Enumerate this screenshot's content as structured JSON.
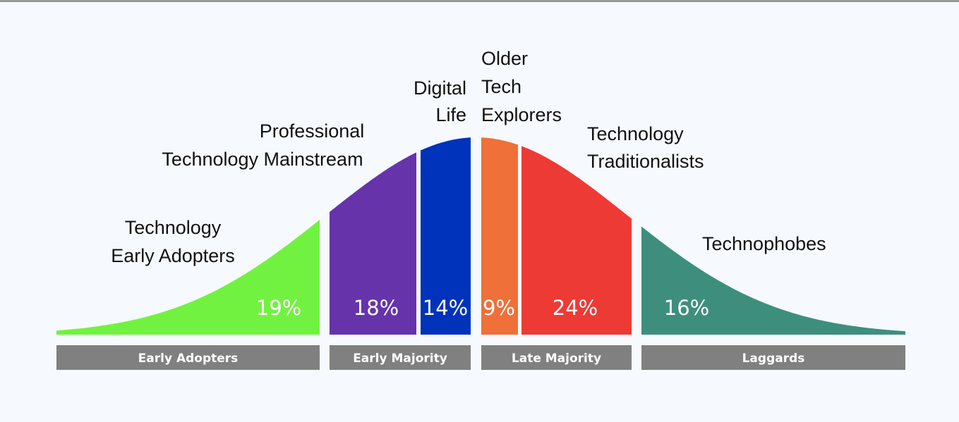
{
  "segments": [
    {
      "label": [
        "Technology",
        "Early Adopters"
      ],
      "percent": "19%"
    },
    {
      "label": [
        "Professional",
        "Technology Mainstream"
      ],
      "percent": "18%"
    },
    {
      "label": [
        "Digital",
        "Life"
      ],
      "percent": "14%"
    },
    {
      "label": [
        "Older",
        "Tech",
        "Explorers"
      ],
      "percent": "9%"
    },
    {
      "label": [
        "Technology",
        "Traditionalists"
      ],
      "percent": "24%"
    },
    {
      "label": [
        "Technophobes"
      ],
      "percent": "16%"
    }
  ],
  "groups": [
    "Early Adopters",
    "Early Majority",
    "Late Majority",
    "Laggards"
  ]
}
